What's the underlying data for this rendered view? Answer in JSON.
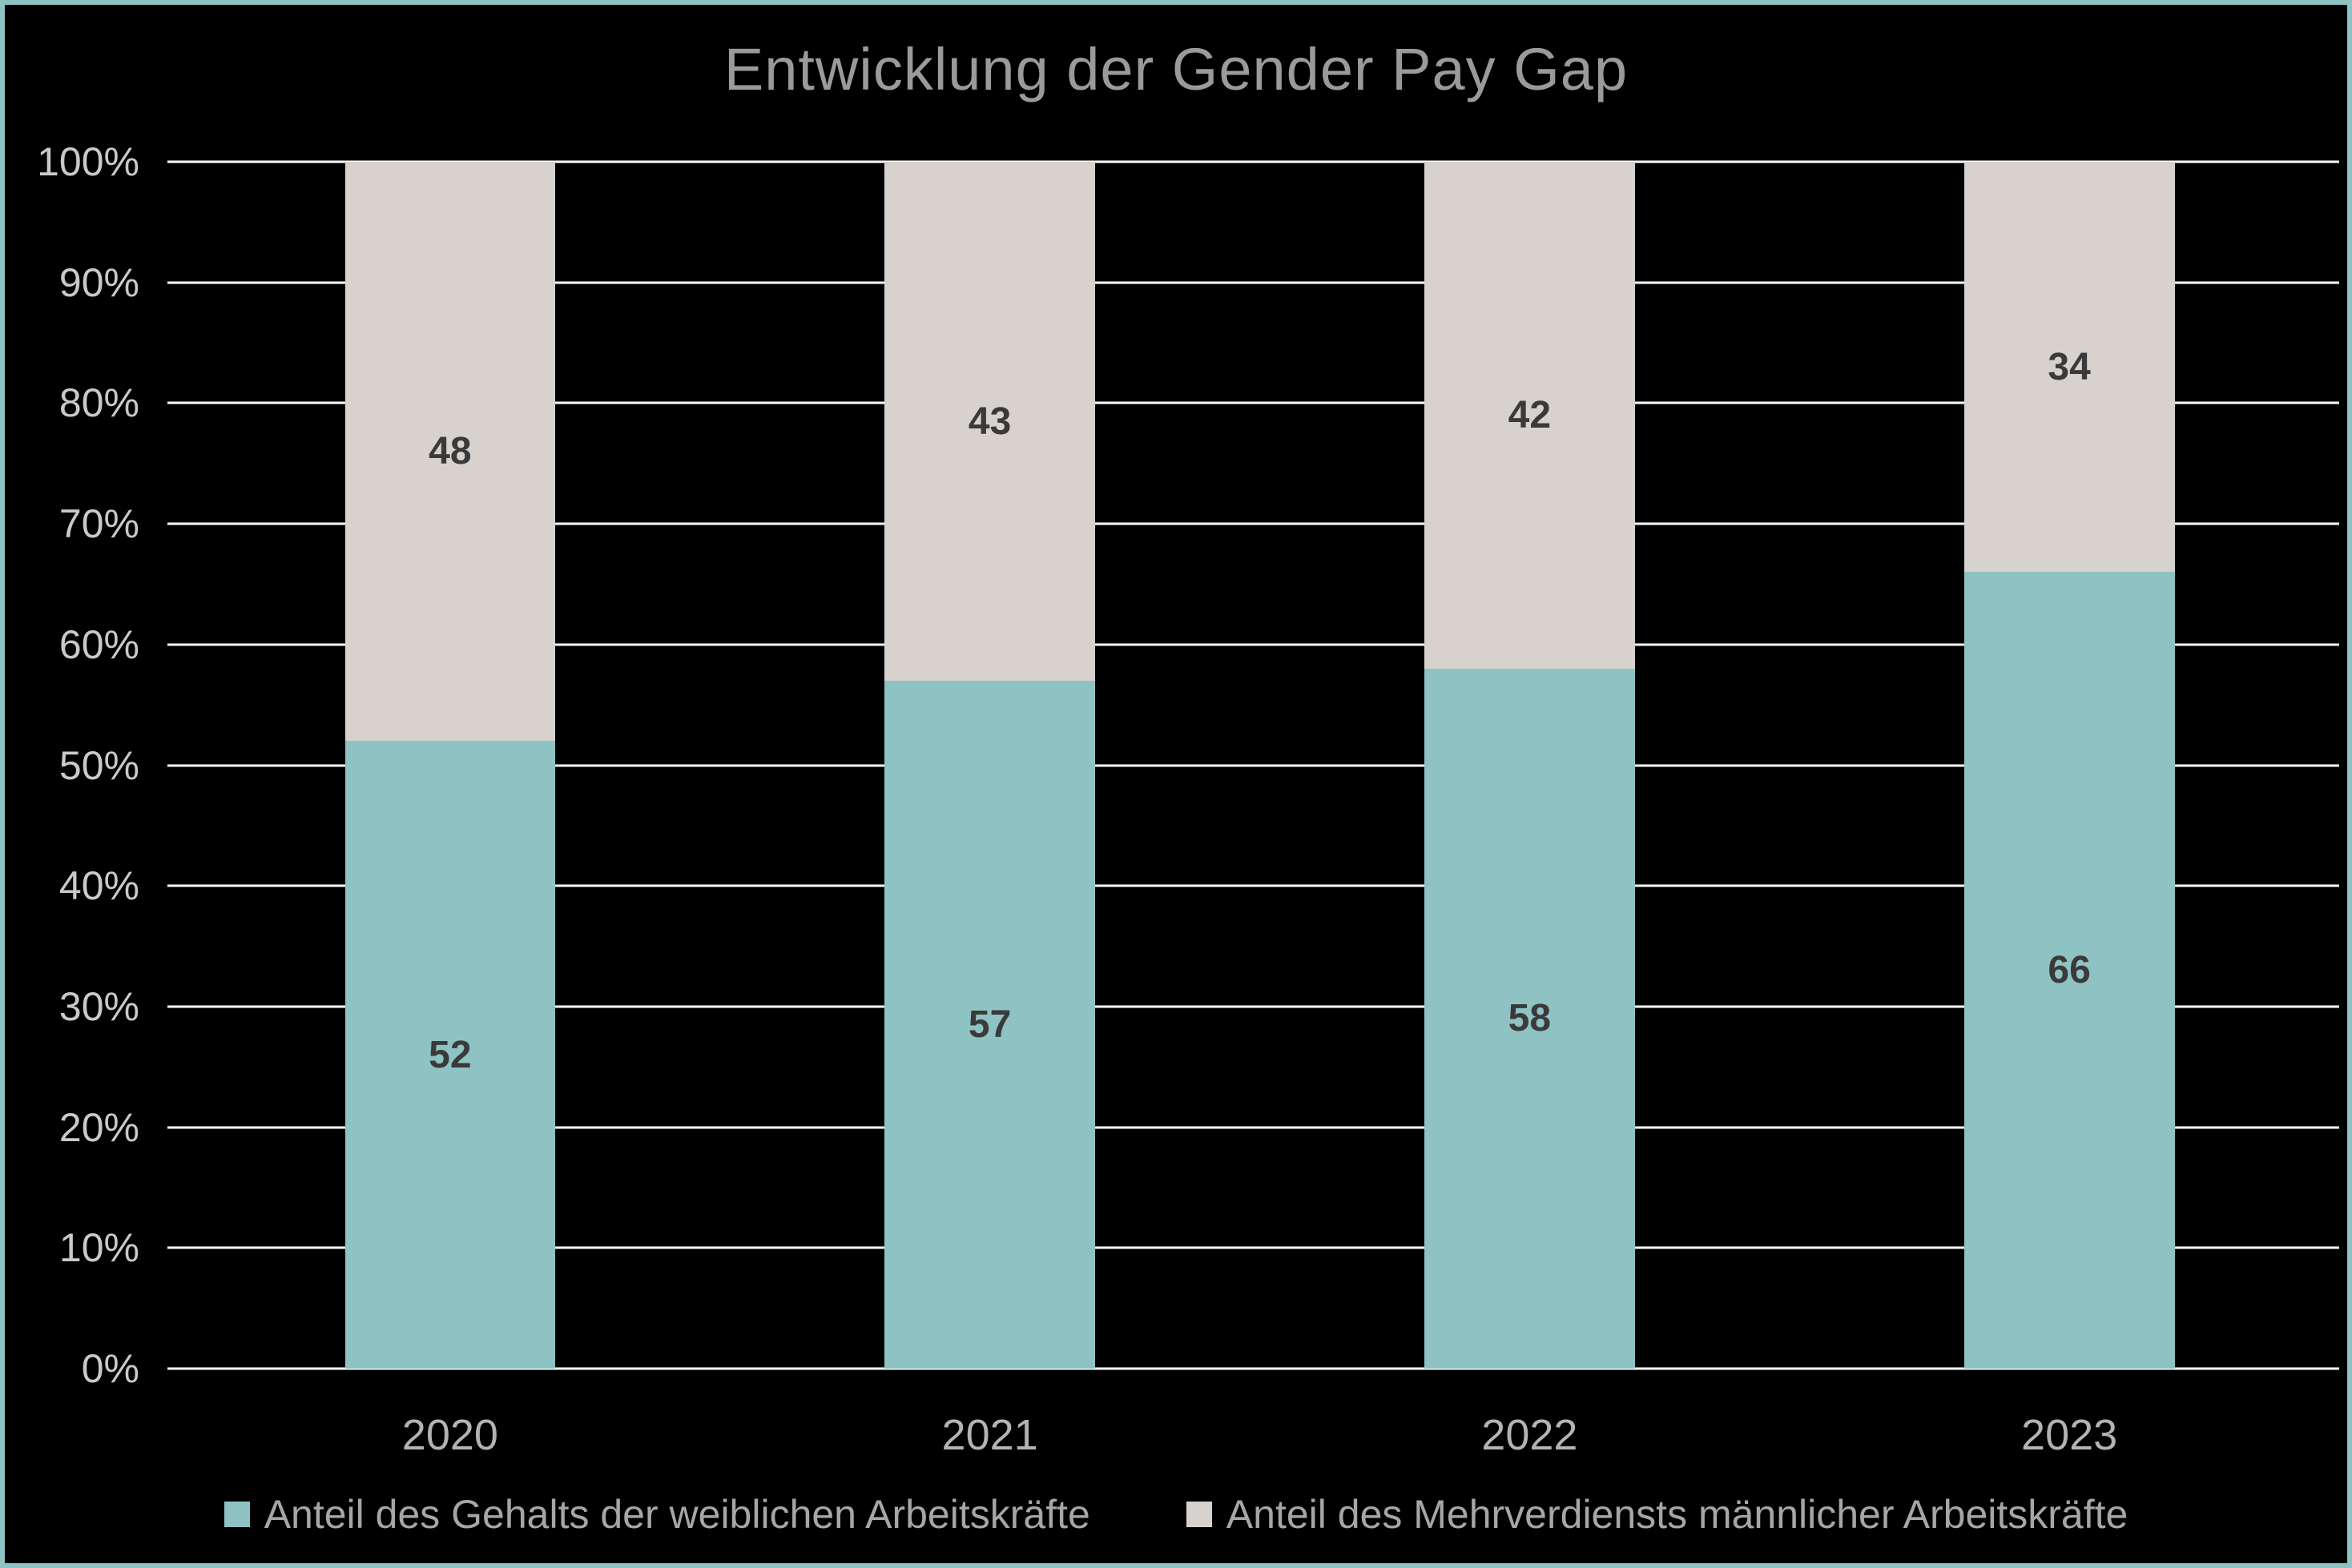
{
  "colors": {
    "background": "#000000",
    "border": "#8fc2c3",
    "gridline": "#ffffff",
    "title_text": "#9a9a9a",
    "ytick_text": "#c9c9c9",
    "xtick_text": "#b3b3b3",
    "data_label_text": "#3a3a3a",
    "legend_text": "#a6a6a6"
  },
  "chart_data": {
    "type": "bar",
    "stacked": true,
    "percent_stacked": true,
    "title": "Entwicklung der Gender Pay Gap",
    "categories": [
      "2020",
      "2021",
      "2022",
      "2023"
    ],
    "series": [
      {
        "name": "Anteil des Gehalts der weiblichen Arbeitskräfte",
        "color": "#8fc2c3",
        "values": [
          52,
          57,
          58,
          66
        ]
      },
      {
        "name": "Anteil des Mehrverdiensts männlicher Arbeitskräfte",
        "color": "#d8d2cf",
        "values": [
          48,
          43,
          42,
          34
        ]
      }
    ],
    "ylim": [
      0,
      100
    ],
    "yticks": [
      0,
      10,
      20,
      30,
      40,
      50,
      60,
      70,
      80,
      90,
      100
    ],
    "ytick_labels": [
      "0%",
      "10%",
      "20%",
      "30%",
      "40%",
      "50%",
      "60%",
      "70%",
      "80%",
      "90%",
      "100%"
    ],
    "grid": true,
    "data_labels": true,
    "legend_position": "bottom"
  }
}
